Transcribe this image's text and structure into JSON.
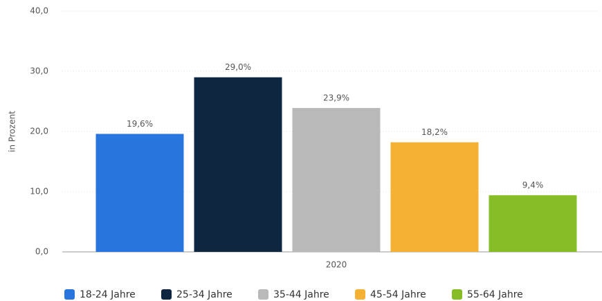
{
  "chart_data": {
    "type": "bar",
    "categories": [
      "2020"
    ],
    "y_label": "in Prozent",
    "ylim": [
      0,
      40
    ],
    "yticks": [
      {
        "value": 0,
        "label": "0,0"
      },
      {
        "value": 10,
        "label": "10,0"
      },
      {
        "value": 20,
        "label": "20,0"
      },
      {
        "value": 30,
        "label": "30,0"
      },
      {
        "value": 40,
        "label": "40,0"
      }
    ],
    "grid": true,
    "legend": "bottom",
    "series": [
      {
        "name": "18-24 Jahre",
        "color": "#2876dd",
        "values": [
          19.6
        ],
        "value_labels": [
          "19,6%"
        ]
      },
      {
        "name": "25-34 Jahre",
        "color": "#0f2640",
        "values": [
          29.0
        ],
        "value_labels": [
          "29,0%"
        ]
      },
      {
        "name": "35-44 Jahre",
        "color": "#b9b9b9",
        "values": [
          23.9
        ],
        "value_labels": [
          "23,9%"
        ]
      },
      {
        "name": "45-54 Jahre",
        "color": "#f4b133",
        "values": [
          18.2
        ],
        "value_labels": [
          "18,2%"
        ]
      },
      {
        "name": "55-64 Jahre",
        "color": "#86bc25",
        "values": [
          9.4
        ],
        "value_labels": [
          "9,4%"
        ]
      }
    ]
  }
}
